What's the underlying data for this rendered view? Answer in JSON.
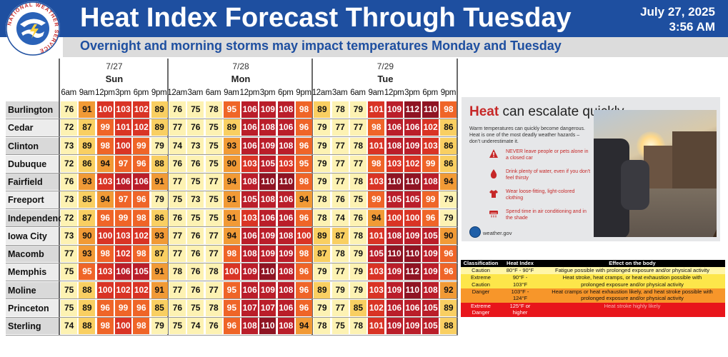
{
  "header": {
    "title": "Heat Index Forecast Through Tuesday",
    "date": "July 27, 2025",
    "time": "3:56 AM",
    "subtitle": "Overnight and morning storms may impact temperatures Monday and Tuesday",
    "logo_text": "NATIONAL WEATHER SERVICE"
  },
  "days": [
    {
      "date": "7/27",
      "name": "Sun",
      "hours": [
        "6am",
        "9am",
        "12pm",
        "3pm",
        "6pm",
        "9pm"
      ]
    },
    {
      "date": "7/28",
      "name": "Mon",
      "hours": [
        "12am",
        "3am",
        "6am",
        "9am",
        "12pm",
        "3pm",
        "6pm",
        "9pm"
      ]
    },
    {
      "date": "7/29",
      "name": "Tue",
      "hours": [
        "12am",
        "3am",
        "6am",
        "9am",
        "12pm",
        "3pm",
        "6pm",
        "9pm"
      ]
    }
  ],
  "rows": [
    {
      "city": "Burlington",
      "values": [
        76,
        91,
        100,
        103,
        102,
        89,
        76,
        75,
        78,
        95,
        106,
        109,
        108,
        98,
        89,
        78,
        79,
        101,
        109,
        112,
        110,
        98
      ]
    },
    {
      "city": "Cedar Rapids",
      "values": [
        72,
        87,
        99,
        101,
        102,
        89,
        77,
        76,
        75,
        89,
        106,
        108,
        106,
        96,
        79,
        77,
        77,
        98,
        106,
        106,
        102,
        86
      ]
    },
    {
      "city": "Clinton",
      "values": [
        73,
        89,
        98,
        100,
        99,
        79,
        74,
        73,
        75,
        93,
        106,
        109,
        108,
        96,
        79,
        77,
        78,
        101,
        108,
        109,
        103,
        86
      ]
    },
    {
      "city": "Dubuque",
      "values": [
        72,
        86,
        94,
        97,
        96,
        88,
        76,
        76,
        75,
        90,
        103,
        105,
        103,
        95,
        79,
        77,
        77,
        98,
        103,
        102,
        99,
        86
      ]
    },
    {
      "city": "Fairfield",
      "values": [
        76,
        93,
        103,
        106,
        106,
        91,
        77,
        75,
        77,
        94,
        108,
        110,
        110,
        98,
        79,
        77,
        78,
        103,
        110,
        110,
        108,
        94
      ]
    },
    {
      "city": "Freeport",
      "values": [
        73,
        85,
        94,
        97,
        96,
        79,
        75,
        73,
        75,
        91,
        105,
        108,
        106,
        94,
        78,
        76,
        75,
        99,
        105,
        105,
        99,
        79
      ]
    },
    {
      "city": "Independence",
      "values": [
        72,
        87,
        96,
        99,
        98,
        86,
        76,
        75,
        75,
        91,
        103,
        106,
        106,
        96,
        78,
        74,
        76,
        94,
        100,
        100,
        96,
        79
      ]
    },
    {
      "city": "Iowa City",
      "values": [
        73,
        90,
        100,
        103,
        102,
        93,
        77,
        76,
        77,
        94,
        106,
        109,
        108,
        100,
        89,
        87,
        78,
        101,
        108,
        109,
        105,
        90
      ]
    },
    {
      "city": "Macomb",
      "values": [
        77,
        93,
        98,
        102,
        98,
        87,
        77,
        76,
        77,
        98,
        108,
        109,
        109,
        98,
        87,
        78,
        79,
        105,
        110,
        110,
        109,
        96
      ]
    },
    {
      "city": "Memphis",
      "values": [
        75,
        95,
        103,
        106,
        105,
        91,
        78,
        76,
        78,
        100,
        109,
        110,
        108,
        96,
        79,
        77,
        79,
        103,
        109,
        112,
        109,
        96
      ]
    },
    {
      "city": "Moline",
      "values": [
        75,
        88,
        100,
        102,
        102,
        91,
        77,
        76,
        77,
        95,
        106,
        109,
        108,
        96,
        89,
        79,
        79,
        103,
        109,
        110,
        108,
        92
      ]
    },
    {
      "city": "Princeton",
      "values": [
        75,
        89,
        96,
        99,
        96,
        85,
        76,
        75,
        78,
        95,
        107,
        107,
        106,
        96,
        79,
        77,
        85,
        102,
        106,
        106,
        105,
        89
      ]
    },
    {
      "city": "Sterling",
      "values": [
        74,
        88,
        98,
        100,
        98,
        79,
        75,
        74,
        76,
        96,
        108,
        110,
        108,
        94,
        78,
        75,
        78,
        101,
        109,
        109,
        105,
        88
      ]
    }
  ],
  "infocard": {
    "title_red": "Heat",
    "title_rest": " can escalate quickly.",
    "intro": "Warm temperatures can quickly become dangerous. Heat is one of the most deadly weather hazards – don’t underestimate it.",
    "tips": [
      {
        "icon": "warning-icon",
        "text": "NEVER leave people or pets alone in a closed car"
      },
      {
        "icon": "water-drop-icon",
        "text": "Drink plenty of water, even if you don't feel thirsty"
      },
      {
        "icon": "shirt-icon",
        "text": "Wear loose-fitting, light-colored clothing"
      },
      {
        "icon": "air-conditioner-icon",
        "text": "Spend time in air conditioning and in the shade"
      }
    ],
    "website": "weather.gov"
  },
  "legend": {
    "headers": [
      "Classification",
      "Heat Index",
      "Effect on the body"
    ],
    "rows": [
      {
        "class": "Caution",
        "index": "80°F - 90°F",
        "effect": "Fatigue possible with prolonged exposure and/or physical activity",
        "color": "#fff6a8"
      },
      {
        "class": "Extreme",
        "index": "90°F -",
        "effect": "Heat stroke, heat cramps, or heat exhaustion possible with",
        "color": "#fde64a"
      },
      {
        "class": "Caution",
        "index": "103°F",
        "effect": "prolonged exposure and/or physical activity",
        "color": "#fde64a"
      },
      {
        "class": "Danger",
        "index": "103°F -\n124°F",
        "effect": "Heat cramps or heat exhaustion likely, and heat stroke possible with prolonged exposure and/or physical activity",
        "color": "#f7962a"
      },
      {
        "class": "Extreme\nDanger",
        "index": "125°F or\nhigher",
        "effect": "Heat stroke highly likely",
        "color": "#e8151b"
      }
    ]
  },
  "colors": {
    "header_blue": "#1e4fa0",
    "c_under80": "#fdf2b3",
    "c_80_89": "#f9cf62",
    "c_90_94": "#f19a36",
    "c_95_99": "#ef6528",
    "c_100_104": "#d93425",
    "c_105_109": "#ba1e2a",
    "c_110_plus": "#8f1423"
  }
}
